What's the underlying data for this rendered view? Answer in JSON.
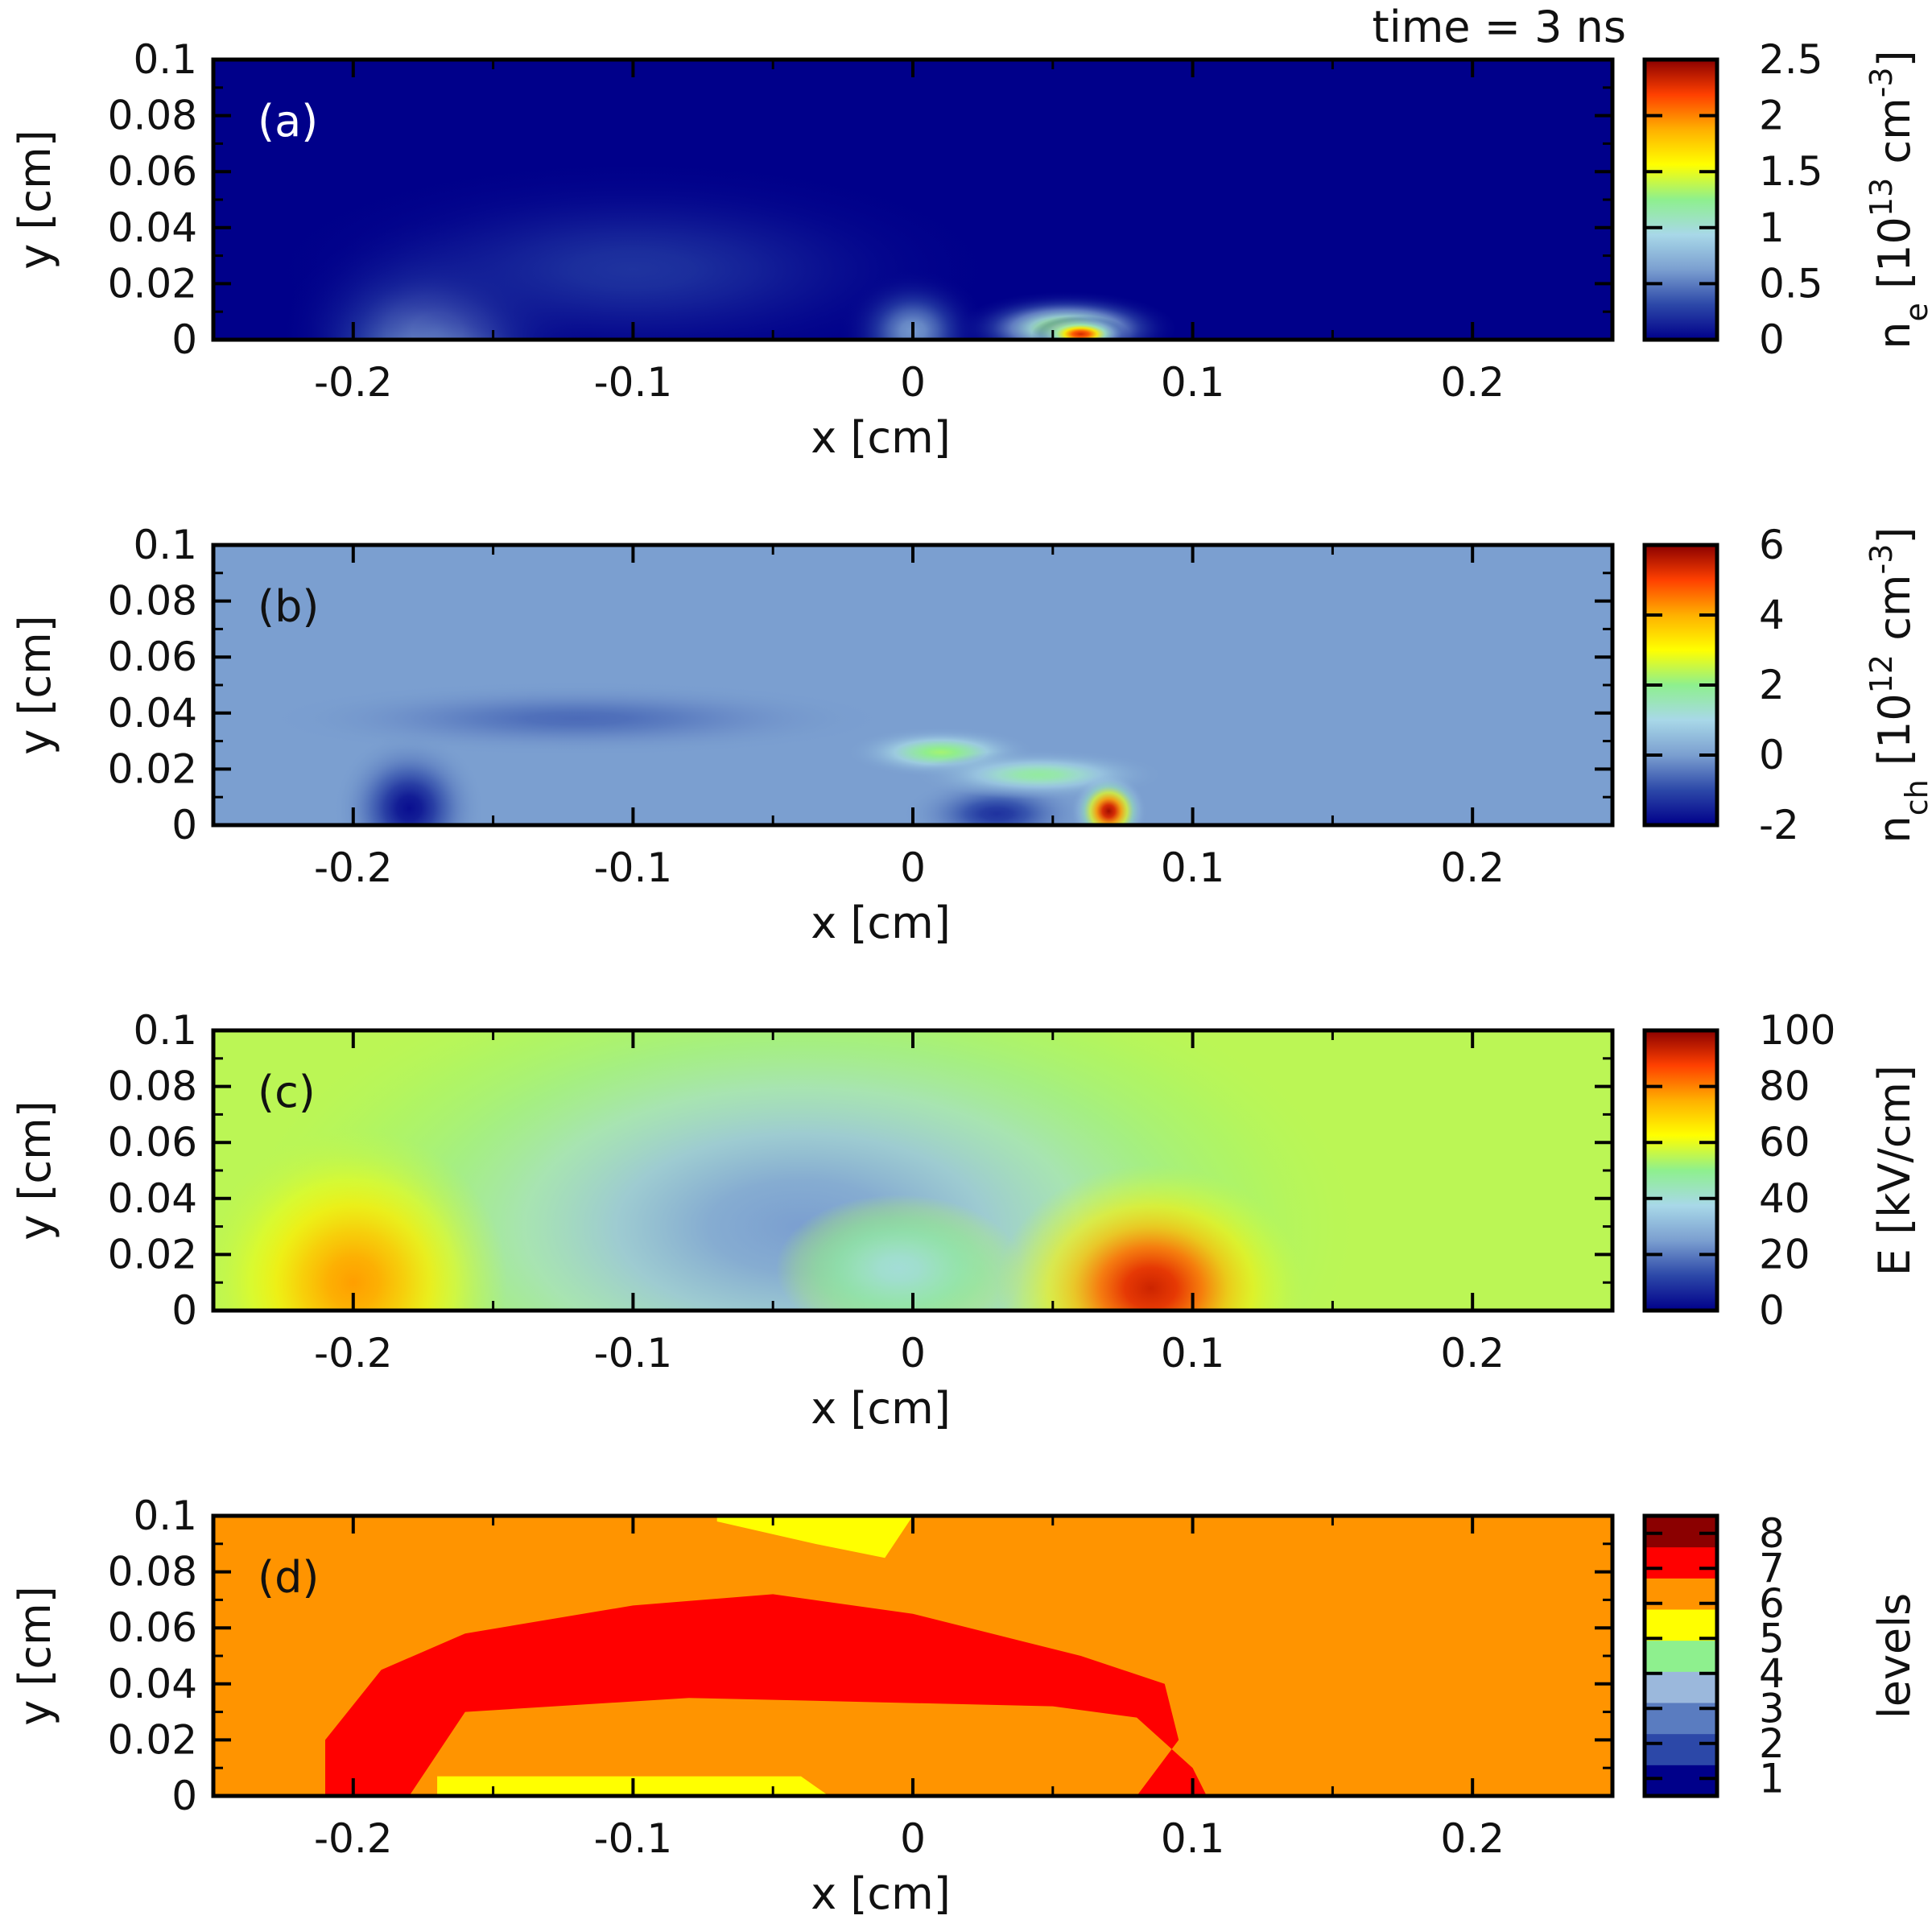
{
  "figure": {
    "title": "time = 3 ns"
  },
  "colors": {
    "jet": [
      "#00008a",
      "#2c48a8",
      "#7b9fd0",
      "#a8d8e8",
      "#8ef08e",
      "#ffff00",
      "#ffb000",
      "#ff4000",
      "#8a0000"
    ],
    "levels": [
      "#00008a",
      "#2c48a8",
      "#5a7cc0",
      "#9bb8dc",
      "#8ef08e",
      "#ffff00",
      "#ff9400",
      "#ff0000",
      "#8b0000"
    ]
  },
  "chart_data": [
    {
      "type": "heatmap",
      "panel_label": "(a)",
      "xlabel": "x [cm]",
      "ylabel": "y [cm]",
      "xlim": [
        -0.25,
        0.25
      ],
      "ylim": [
        0,
        0.1
      ],
      "xticks": [
        "-0.2",
        "-0.1",
        "0",
        "0.1",
        "0.2"
      ],
      "yticks": [
        "0",
        "0.02",
        "0.04",
        "0.06",
        "0.08",
        "0.1"
      ],
      "colorbar": {
        "range": [
          0,
          2.5
        ],
        "ticks": [
          "0",
          "0.5",
          "1",
          "1.5",
          "2",
          "2.5"
        ],
        "label": "n_e [10^13 cm^-3]",
        "label_base": "n",
        "label_sub": "e",
        "label_mid": " [10",
        "label_sup1": "13",
        "label_unit": " cm",
        "label_sup2": "-3",
        "label_end": "]"
      },
      "background": 0,
      "features": [
        {
          "x": -0.17,
          "y": 0.003,
          "sx": 0.025,
          "sy": 0.018,
          "v": 0.7
        },
        {
          "x": -0.1,
          "y": 0.025,
          "sx": 0.06,
          "sy": 0.018,
          "v": 0.22
        },
        {
          "x": 0.0,
          "y": 0.003,
          "sx": 0.012,
          "sy": 0.01,
          "v": 0.6
        },
        {
          "x": 0.055,
          "y": 0.004,
          "sx": 0.018,
          "sy": 0.006,
          "v": 1.4
        },
        {
          "x": 0.06,
          "y": 0.002,
          "sx": 0.008,
          "sy": 0.003,
          "v": 2.3
        }
      ]
    },
    {
      "type": "heatmap",
      "panel_label": "(b)",
      "xlabel": "x [cm]",
      "ylabel": "y [cm]",
      "xlim": [
        -0.25,
        0.25
      ],
      "ylim": [
        0,
        0.1
      ],
      "xticks": [
        "-0.2",
        "-0.1",
        "0",
        "0.1",
        "0.2"
      ],
      "yticks": [
        "0",
        "0.02",
        "0.04",
        "0.06",
        "0.08",
        "0.1"
      ],
      "colorbar": {
        "range": [
          -2,
          6
        ],
        "ticks": [
          "-2",
          "0",
          "2",
          "4",
          "6"
        ],
        "label": "n_ch [10^12 cm^-3]",
        "label_base": "n",
        "label_sub": "ch",
        "label_mid": " [10",
        "label_sup1": "12",
        "label_unit": " cm",
        "label_sup2": "-3",
        "label_end": "]"
      },
      "background": 0,
      "features": [
        {
          "x": -0.18,
          "y": 0.006,
          "sx": 0.012,
          "sy": 0.012,
          "v": -1.8
        },
        {
          "x": -0.12,
          "y": 0.038,
          "sx": 0.05,
          "sy": 0.006,
          "v": -0.6
        },
        {
          "x": 0.03,
          "y": 0.004,
          "sx": 0.015,
          "sy": 0.006,
          "v": -1.3
        },
        {
          "x": 0.01,
          "y": 0.026,
          "sx": 0.015,
          "sy": 0.004,
          "v": 2.2
        },
        {
          "x": 0.045,
          "y": 0.018,
          "sx": 0.02,
          "sy": 0.004,
          "v": 1.8
        },
        {
          "x": 0.07,
          "y": 0.005,
          "sx": 0.006,
          "sy": 0.006,
          "v": 5.8
        }
      ]
    },
    {
      "type": "heatmap",
      "panel_label": "(c)",
      "xlabel": "x [cm]",
      "ylabel": "y [cm]",
      "xlim": [
        -0.25,
        0.25
      ],
      "ylim": [
        0,
        0.1
      ],
      "xticks": [
        "-0.2",
        "-0.1",
        "0",
        "0.1",
        "0.2"
      ],
      "yticks": [
        "0",
        "0.02",
        "0.04",
        "0.06",
        "0.08",
        "0.1"
      ],
      "colorbar": {
        "range": [
          0,
          100
        ],
        "ticks": [
          "0",
          "20",
          "40",
          "60",
          "80",
          "100"
        ],
        "label": "E [kV/cm]"
      },
      "background": 55,
      "features": [
        {
          "x": -0.04,
          "y": 0.03,
          "sx": 0.09,
          "sy": 0.045,
          "v": -30
        },
        {
          "x": -0.005,
          "y": 0.015,
          "sx": 0.02,
          "sy": 0.012,
          "v": -15
        },
        {
          "x": -0.2,
          "y": 0.01,
          "sx": 0.025,
          "sy": 0.025,
          "v": 22
        },
        {
          "x": 0.085,
          "y": 0.008,
          "sx": 0.025,
          "sy": 0.02,
          "v": 38
        }
      ]
    },
    {
      "type": "heatmap",
      "panel_label": "(d)",
      "xlabel": "x [cm]",
      "ylabel": "y [cm]",
      "xlim": [
        -0.25,
        0.25
      ],
      "ylim": [
        0,
        0.1
      ],
      "xticks": [
        "-0.2",
        "-0.1",
        "0",
        "0.1",
        "0.2"
      ],
      "yticks": [
        "0",
        "0.02",
        "0.04",
        "0.06",
        "0.08",
        "0.1"
      ],
      "colorbar": {
        "range": [
          0.5,
          8.5
        ],
        "ticks": [
          "1",
          "2",
          "3",
          "4",
          "5",
          "6",
          "7",
          "8"
        ],
        "label": "levels"
      },
      "regions": [
        {
          "level": 7,
          "points": [
            [
              -0.25,
              0
            ],
            [
              0.16,
              0
            ],
            [
              0.16,
              0.06
            ],
            [
              0.14,
              0.085
            ],
            [
              0.09,
              0.098
            ],
            [
              -0.25,
              0.098
            ]
          ]
        },
        {
          "level": 6,
          "points": [
            [
              -0.07,
              0.1
            ],
            [
              0,
              0.1
            ],
            [
              -0.01,
              0.085
            ],
            [
              -0.035,
              0.09
            ],
            [
              -0.07,
              0.098
            ]
          ]
        },
        {
          "level": 6,
          "points": [
            [
              -0.17,
              0
            ],
            [
              -0.03,
              0
            ],
            [
              -0.04,
              0.007
            ],
            [
              -0.17,
              0.007
            ]
          ]
        },
        {
          "level": 8,
          "points": [
            [
              -0.21,
              0
            ],
            [
              -0.18,
              0
            ],
            [
              -0.16,
              0.03
            ],
            [
              -0.08,
              0.035
            ],
            [
              0.05,
              0.032
            ],
            [
              0.08,
              0.028
            ],
            [
              0.1,
              0.01
            ],
            [
              0.105,
              0
            ],
            [
              0.08,
              0
            ],
            [
              0.095,
              0.02
            ],
            [
              0.09,
              0.04
            ],
            [
              0.06,
              0.05
            ],
            [
              0,
              0.065
            ],
            [
              -0.05,
              0.072
            ],
            [
              -0.1,
              0.068
            ],
            [
              -0.16,
              0.058
            ],
            [
              -0.19,
              0.045
            ],
            [
              -0.21,
              0.02
            ]
          ]
        }
      ]
    }
  ]
}
